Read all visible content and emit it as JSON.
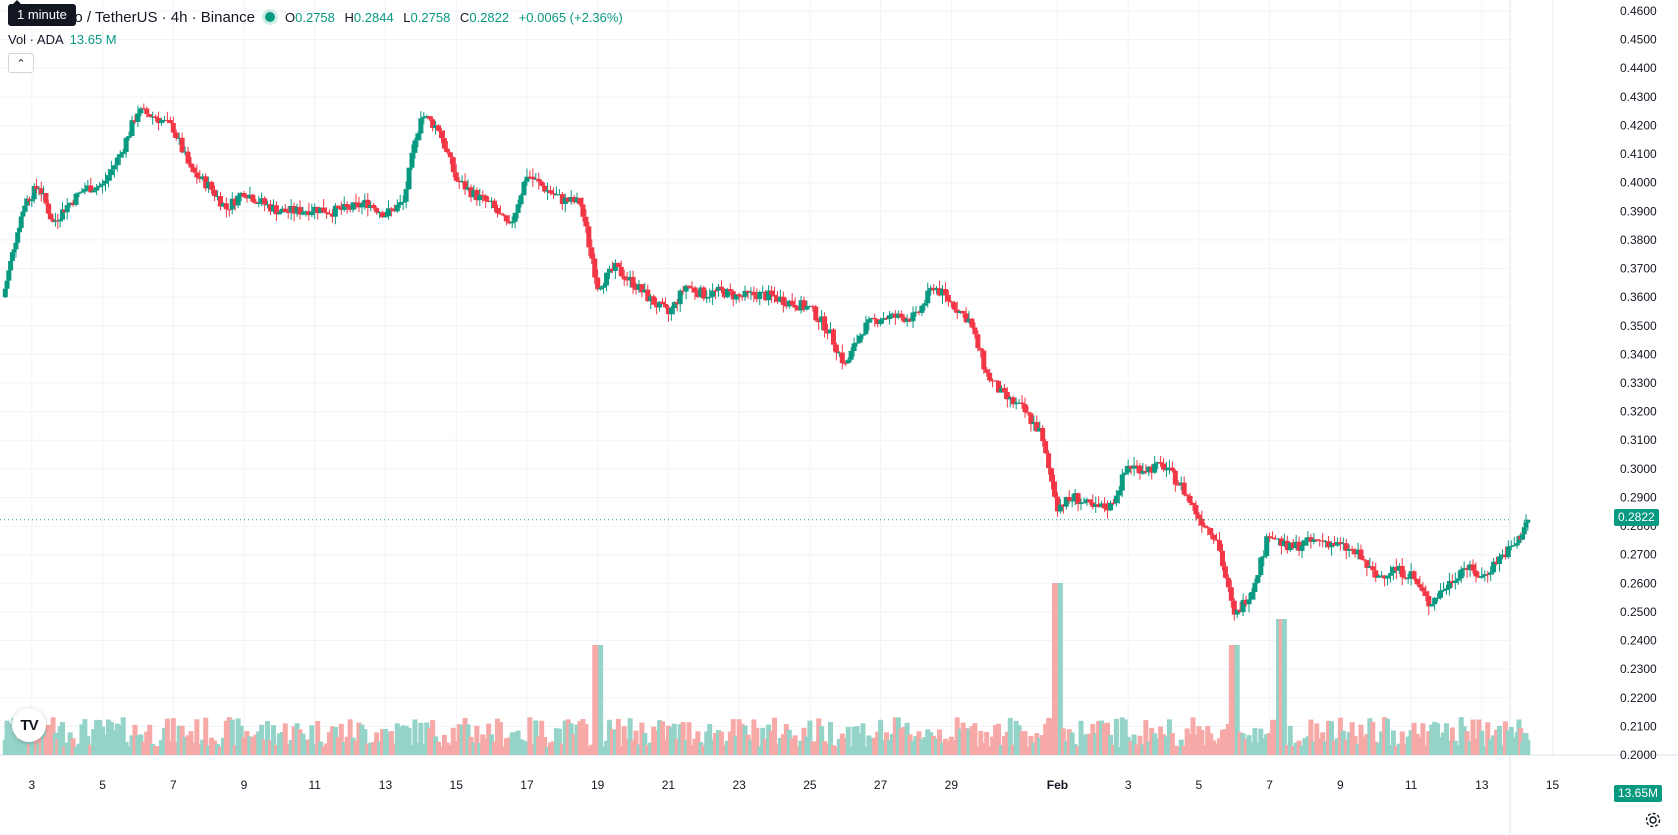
{
  "legend": {
    "tooltip": "1 minute",
    "symbol": "no / TetherUS · 4h · Binance",
    "open_label": "O",
    "open": "0.2758",
    "high_label": "H",
    "high": "0.2844",
    "low_label": "L",
    "low": "0.2758",
    "close_label": "C",
    "close": "0.2822",
    "change": "+0.0065 (+2.36%)"
  },
  "volume_legend": {
    "label": "Vol · ADA",
    "value": "13.65 M"
  },
  "badges": {
    "last_price": "0.2822",
    "last_volume": "13.65M"
  },
  "logo_text": "TV",
  "colors": {
    "up": "#089981",
    "down": "#f23645",
    "up_volume": "#94d3c8",
    "down_volume": "#f7a9a7",
    "grid": "#f0f3fa"
  },
  "chart_data": {
    "type": "candlestick",
    "title": "no / TetherUS · 4h · Binance",
    "ylim": [
      0.2,
      0.46
    ],
    "y_ticks": [
      "0.4600",
      "0.4500",
      "0.4400",
      "0.4300",
      "0.4200",
      "0.4100",
      "0.4000",
      "0.3900",
      "0.3800",
      "0.3700",
      "0.3600",
      "0.3500",
      "0.3400",
      "0.3300",
      "0.3200",
      "0.3100",
      "0.3000",
      "0.2900",
      "0.2800",
      "0.2700",
      "0.2600",
      "0.2500",
      "0.2400",
      "0.2300",
      "0.2200",
      "0.2100",
      "0.2000"
    ],
    "x_ticks": [
      "3",
      "5",
      "7",
      "9",
      "11",
      "13",
      "15",
      "17",
      "19",
      "21",
      "23",
      "25",
      "27",
      "29",
      "Feb",
      "3",
      "5",
      "7",
      "9",
      "11",
      "13",
      "15"
    ],
    "x_days": [
      3,
      5,
      7,
      9,
      11,
      13,
      15,
      17,
      19,
      21,
      23,
      25,
      27,
      29,
      32,
      34,
      36,
      38,
      40,
      42,
      44,
      46
    ],
    "x_range": [
      2.1,
      47.2
    ],
    "last_price": 0.2822,
    "series": [
      {
        "day": 2.2,
        "close": 0.36
      },
      {
        "day": 2.5,
        "close": 0.378
      },
      {
        "day": 2.8,
        "close": 0.393
      },
      {
        "day": 3.2,
        "close": 0.399
      },
      {
        "day": 3.6,
        "close": 0.386
      },
      {
        "day": 4.0,
        "close": 0.392
      },
      {
        "day": 4.5,
        "close": 0.398
      },
      {
        "day": 5.0,
        "close": 0.399
      },
      {
        "day": 5.5,
        "close": 0.41
      },
      {
        "day": 6.0,
        "close": 0.425
      },
      {
        "day": 6.5,
        "close": 0.423
      },
      {
        "day": 7.0,
        "close": 0.419
      },
      {
        "day": 7.5,
        "close": 0.404
      },
      {
        "day": 8.0,
        "close": 0.399
      },
      {
        "day": 8.5,
        "close": 0.391
      },
      {
        "day": 9.0,
        "close": 0.397
      },
      {
        "day": 9.5,
        "close": 0.393
      },
      {
        "day": 10.0,
        "close": 0.39
      },
      {
        "day": 10.5,
        "close": 0.39
      },
      {
        "day": 11.0,
        "close": 0.391
      },
      {
        "day": 11.5,
        "close": 0.39
      },
      {
        "day": 12.0,
        "close": 0.391
      },
      {
        "day": 12.5,
        "close": 0.393
      },
      {
        "day": 13.0,
        "close": 0.389
      },
      {
        "day": 13.5,
        "close": 0.393
      },
      {
        "day": 14.0,
        "close": 0.424
      },
      {
        "day": 14.5,
        "close": 0.419
      },
      {
        "day": 15.0,
        "close": 0.401
      },
      {
        "day": 15.5,
        "close": 0.396
      },
      {
        "day": 16.0,
        "close": 0.392
      },
      {
        "day": 16.5,
        "close": 0.384
      },
      {
        "day": 17.0,
        "close": 0.403
      },
      {
        "day": 17.5,
        "close": 0.398
      },
      {
        "day": 18.0,
        "close": 0.394
      },
      {
        "day": 18.5,
        "close": 0.393
      },
      {
        "day": 19.0,
        "close": 0.364
      },
      {
        "day": 19.5,
        "close": 0.37
      },
      {
        "day": 20.0,
        "close": 0.365
      },
      {
        "day": 20.5,
        "close": 0.359
      },
      {
        "day": 21.0,
        "close": 0.354
      },
      {
        "day": 21.5,
        "close": 0.364
      },
      {
        "day": 22.0,
        "close": 0.361
      },
      {
        "day": 22.5,
        "close": 0.362
      },
      {
        "day": 23.0,
        "close": 0.36
      },
      {
        "day": 23.5,
        "close": 0.361
      },
      {
        "day": 24.0,
        "close": 0.36
      },
      {
        "day": 24.5,
        "close": 0.358
      },
      {
        "day": 25.0,
        "close": 0.356
      },
      {
        "day": 25.5,
        "close": 0.349
      },
      {
        "day": 26.0,
        "close": 0.336
      },
      {
        "day": 26.5,
        "close": 0.349
      },
      {
        "day": 27.0,
        "close": 0.353
      },
      {
        "day": 27.5,
        "close": 0.353
      },
      {
        "day": 28.0,
        "close": 0.353
      },
      {
        "day": 28.5,
        "close": 0.364
      },
      {
        "day": 29.0,
        "close": 0.358
      },
      {
        "day": 29.5,
        "close": 0.352
      },
      {
        "day": 30.0,
        "close": 0.333
      },
      {
        "day": 30.5,
        "close": 0.325
      },
      {
        "day": 31.0,
        "close": 0.321
      },
      {
        "day": 31.5,
        "close": 0.313
      },
      {
        "day": 32.0,
        "close": 0.287
      },
      {
        "day": 32.5,
        "close": 0.29
      },
      {
        "day": 33.0,
        "close": 0.286
      },
      {
        "day": 33.5,
        "close": 0.287
      },
      {
        "day": 34.0,
        "close": 0.301
      },
      {
        "day": 34.5,
        "close": 0.3
      },
      {
        "day": 35.0,
        "close": 0.301
      },
      {
        "day": 35.5,
        "close": 0.294
      },
      {
        "day": 36.0,
        "close": 0.283
      },
      {
        "day": 36.5,
        "close": 0.276
      },
      {
        "day": 37.0,
        "close": 0.248
      },
      {
        "day": 37.5,
        "close": 0.258
      },
      {
        "day": 38.0,
        "close": 0.278
      },
      {
        "day": 38.5,
        "close": 0.272
      },
      {
        "day": 39.0,
        "close": 0.274
      },
      {
        "day": 39.5,
        "close": 0.275
      },
      {
        "day": 40.0,
        "close": 0.273
      },
      {
        "day": 40.5,
        "close": 0.27
      },
      {
        "day": 41.0,
        "close": 0.262
      },
      {
        "day": 41.5,
        "close": 0.265
      },
      {
        "day": 42.0,
        "close": 0.263
      },
      {
        "day": 42.5,
        "close": 0.253
      },
      {
        "day": 43.0,
        "close": 0.259
      },
      {
        "day": 43.5,
        "close": 0.266
      },
      {
        "day": 44.0,
        "close": 0.262
      },
      {
        "day": 44.5,
        "close": 0.269
      },
      {
        "day": 45.0,
        "close": 0.274
      },
      {
        "day": 45.3,
        "close": 0.2822
      }
    ],
    "volume_spikes": [
      {
        "day": 19.0,
        "ratio": 0.55
      },
      {
        "day": 32.0,
        "ratio": 0.86
      },
      {
        "day": 37.0,
        "ratio": 0.55
      },
      {
        "day": 38.3,
        "ratio": 0.68
      }
    ]
  }
}
